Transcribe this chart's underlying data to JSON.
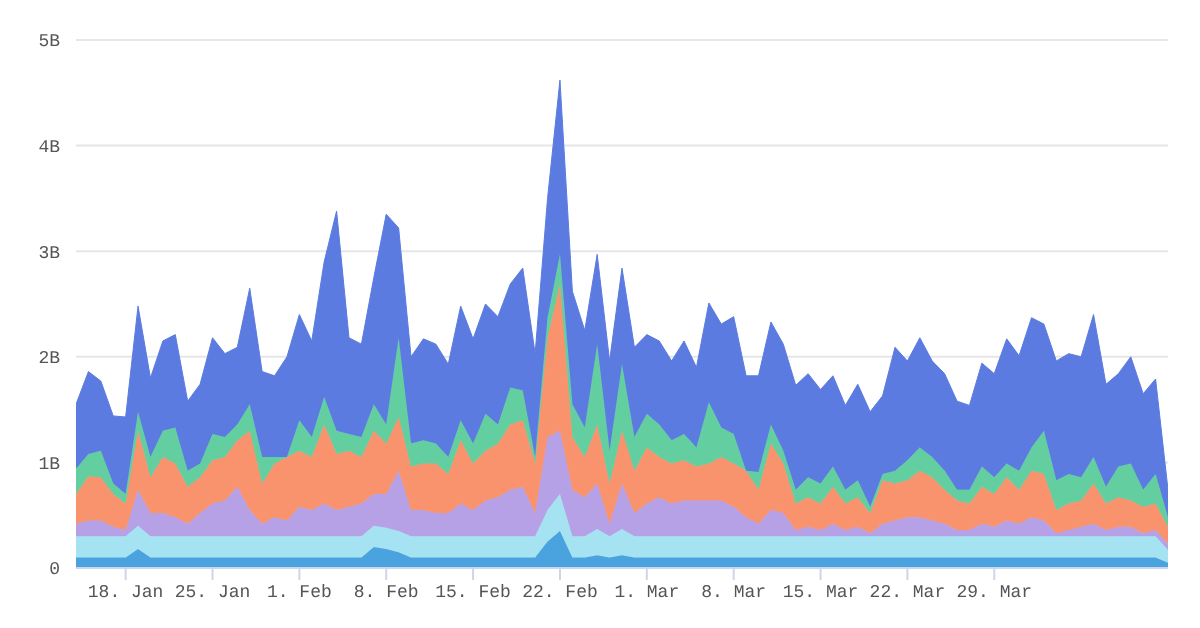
{
  "chart_data": {
    "type": "area",
    "stacked": true,
    "grid": "y",
    "marker": "none",
    "x": [
      "--01-14",
      "--01-15",
      "--01-16",
      "--01-17",
      "--01-18",
      "--01-19",
      "--01-20",
      "--01-21",
      "--01-22",
      "--01-23",
      "--01-24",
      "--01-25",
      "--01-26",
      "--01-27",
      "--01-28",
      "--01-29",
      "--01-30",
      "--01-31",
      "--02-01",
      "--02-02",
      "--02-03",
      "--02-04",
      "--02-05",
      "--02-06",
      "--02-07",
      "--02-08",
      "--02-09",
      "--02-10",
      "--02-11",
      "--02-12",
      "--02-13",
      "--02-14",
      "--02-15",
      "--02-16",
      "--02-17",
      "--02-18",
      "--02-19",
      "--02-20",
      "--02-21",
      "--02-22",
      "--02-23",
      "--02-24",
      "--02-25",
      "--02-26",
      "--02-27",
      "--02-28",
      "--03-01",
      "--03-02",
      "--03-03",
      "--03-04",
      "--03-05",
      "--03-06",
      "--03-07",
      "--03-08",
      "--03-09",
      "--03-10",
      "--03-11",
      "--03-12",
      "--03-13",
      "--03-14",
      "--03-15",
      "--03-16",
      "--03-17",
      "--03-18",
      "--03-19",
      "--03-20",
      "--03-21",
      "--03-22",
      "--03-23",
      "--03-24",
      "--03-25",
      "--03-26",
      "--03-27",
      "--03-28",
      "--03-29",
      "--03-30",
      "--03-31",
      "--04-01",
      "--04-02",
      "--04-03",
      "--04-04",
      "--04-05",
      "--04-06",
      "--04-07",
      "--04-08",
      "--04-09",
      "--04-10",
      "--04-11",
      "--04-12"
    ],
    "xlim": [
      "--01-14",
      "--04-12"
    ],
    "xticks": [
      {
        "value": "--01-18",
        "label": "18. Jan"
      },
      {
        "value": "--01-25",
        "label": "25. Jan"
      },
      {
        "value": "--02-01",
        "label": "1. Feb"
      },
      {
        "value": "--02-08",
        "label": "8. Feb"
      },
      {
        "value": "--02-15",
        "label": "15. Feb"
      },
      {
        "value": "--02-22",
        "label": "22. Feb"
      },
      {
        "value": "--03-01",
        "label": "1. Mar"
      },
      {
        "value": "--03-08",
        "label": "8. Mar"
      },
      {
        "value": "--03-15",
        "label": "15. Mar"
      },
      {
        "value": "--03-22",
        "label": "22. Mar"
      },
      {
        "value": "--03-29",
        "label": "29. Mar"
      }
    ],
    "ylim": [
      0,
      5
    ],
    "yticks": [
      {
        "value": 0,
        "label": "0"
      },
      {
        "value": 1,
        "label": "1B"
      },
      {
        "value": 2,
        "label": "2B"
      },
      {
        "value": 3,
        "label": "3B"
      },
      {
        "value": 4,
        "label": "4B"
      },
      {
        "value": 5,
        "label": "5B"
      }
    ],
    "series": [
      {
        "color": "#4aa3df",
        "values": [
          0.1,
          0.1,
          0.1,
          0.1,
          0.1,
          0.18,
          0.1,
          0.1,
          0.1,
          0.1,
          0.1,
          0.1,
          0.1,
          0.1,
          0.1,
          0.1,
          0.1,
          0.1,
          0.1,
          0.1,
          0.1,
          0.1,
          0.1,
          0.1,
          0.2,
          0.18,
          0.15,
          0.1,
          0.1,
          0.1,
          0.1,
          0.1,
          0.1,
          0.1,
          0.1,
          0.1,
          0.1,
          0.1,
          0.25,
          0.35,
          0.1,
          0.1,
          0.12,
          0.1,
          0.12,
          0.1,
          0.1,
          0.1,
          0.1,
          0.1,
          0.1,
          0.1,
          0.1,
          0.1,
          0.1,
          0.1,
          0.1,
          0.1,
          0.1,
          0.1,
          0.1,
          0.1,
          0.1,
          0.1,
          0.1,
          0.1,
          0.1,
          0.1,
          0.1,
          0.1,
          0.1,
          0.1,
          0.1,
          0.1,
          0.1,
          0.1,
          0.1,
          0.1,
          0.1,
          0.1,
          0.1,
          0.1,
          0.1,
          0.1,
          0.1,
          0.1,
          0.1,
          0.1,
          0.05
        ]
      },
      {
        "color": "#a5e3f2",
        "values": [
          0.2,
          0.2,
          0.2,
          0.2,
          0.2,
          0.22,
          0.2,
          0.2,
          0.2,
          0.2,
          0.2,
          0.2,
          0.2,
          0.2,
          0.2,
          0.2,
          0.2,
          0.2,
          0.2,
          0.2,
          0.2,
          0.2,
          0.2,
          0.2,
          0.2,
          0.2,
          0.2,
          0.2,
          0.2,
          0.2,
          0.2,
          0.2,
          0.2,
          0.2,
          0.2,
          0.2,
          0.2,
          0.2,
          0.3,
          0.35,
          0.2,
          0.2,
          0.25,
          0.2,
          0.25,
          0.2,
          0.2,
          0.2,
          0.2,
          0.2,
          0.2,
          0.2,
          0.2,
          0.2,
          0.2,
          0.2,
          0.2,
          0.2,
          0.2,
          0.2,
          0.2,
          0.2,
          0.2,
          0.2,
          0.2,
          0.2,
          0.2,
          0.2,
          0.2,
          0.2,
          0.2,
          0.2,
          0.2,
          0.2,
          0.2,
          0.2,
          0.2,
          0.2,
          0.2,
          0.2,
          0.2,
          0.2,
          0.2,
          0.2,
          0.2,
          0.2,
          0.2,
          0.2,
          0.12
        ]
      },
      {
        "color": "#b7a1e6",
        "values": [
          0.12,
          0.15,
          0.15,
          0.09,
          0.06,
          0.34,
          0.22,
          0.22,
          0.18,
          0.12,
          0.22,
          0.31,
          0.34,
          0.47,
          0.25,
          0.12,
          0.18,
          0.15,
          0.28,
          0.25,
          0.31,
          0.25,
          0.28,
          0.31,
          0.3,
          0.32,
          0.57,
          0.25,
          0.25,
          0.22,
          0.22,
          0.31,
          0.25,
          0.34,
          0.37,
          0.44,
          0.47,
          0.22,
          0.69,
          0.6,
          0.44,
          0.37,
          0.43,
          0.12,
          0.43,
          0.22,
          0.31,
          0.37,
          0.31,
          0.34,
          0.34,
          0.34,
          0.34,
          0.28,
          0.18,
          0.12,
          0.25,
          0.22,
          0.06,
          0.09,
          0.06,
          0.12,
          0.06,
          0.09,
          0.03,
          0.12,
          0.15,
          0.18,
          0.18,
          0.15,
          0.12,
          0.06,
          0.06,
          0.12,
          0.09,
          0.15,
          0.12,
          0.18,
          0.15,
          0.03,
          0.06,
          0.09,
          0.12,
          0.06,
          0.09,
          0.09,
          0.03,
          0.06,
          0.06
        ]
      },
      {
        "color": "#f8936e",
        "values": [
          0.28,
          0.42,
          0.41,
          0.31,
          0.25,
          0.56,
          0.34,
          0.53,
          0.51,
          0.35,
          0.34,
          0.41,
          0.41,
          0.44,
          0.75,
          0.38,
          0.51,
          0.6,
          0.53,
          0.5,
          0.75,
          0.53,
          0.53,
          0.44,
          0.6,
          0.48,
          0.51,
          0.41,
          0.44,
          0.47,
          0.37,
          0.6,
          0.44,
          0.47,
          0.51,
          0.62,
          0.63,
          0.47,
          0.94,
          1.39,
          0.5,
          0.38,
          0.56,
          0.38,
          0.5,
          0.4,
          0.53,
          0.38,
          0.38,
          0.38,
          0.32,
          0.35,
          0.41,
          0.41,
          0.44,
          0.32,
          0.63,
          0.47,
          0.25,
          0.28,
          0.25,
          0.35,
          0.25,
          0.28,
          0.19,
          0.41,
          0.35,
          0.35,
          0.44,
          0.41,
          0.32,
          0.28,
          0.25,
          0.35,
          0.31,
          0.41,
          0.32,
          0.44,
          0.44,
          0.22,
          0.25,
          0.25,
          0.38,
          0.25,
          0.28,
          0.25,
          0.25,
          0.25,
          0.16
        ]
      },
      {
        "color": "#63cfa0",
        "values": [
          0.24,
          0.21,
          0.25,
          0.1,
          0.09,
          0.18,
          0.19,
          0.25,
          0.34,
          0.15,
          0.13,
          0.25,
          0.19,
          0.15,
          0.25,
          0.25,
          0.06,
          0,
          0.29,
          0.19,
          0.26,
          0.22,
          0.16,
          0.19,
          0.25,
          0.18,
          0.75,
          0.22,
          0.22,
          0.19,
          0.16,
          0.19,
          0.19,
          0.35,
          0.18,
          0.35,
          0.28,
          0.06,
          0.19,
          0.28,
          0.31,
          0.28,
          0.76,
          0.31,
          0.63,
          0.32,
          0.32,
          0.31,
          0.22,
          0.25,
          0.18,
          0.58,
          0.28,
          0.28,
          0,
          0.17,
          0.18,
          0.12,
          0.13,
          0.19,
          0.19,
          0.19,
          0.13,
          0.16,
          0.06,
          0.06,
          0.12,
          0.19,
          0.22,
          0.19,
          0.18,
          0.1,
          0.13,
          0.19,
          0.16,
          0.13,
          0.18,
          0.22,
          0.41,
          0.28,
          0.28,
          0.22,
          0.25,
          0.16,
          0.29,
          0.35,
          0.16,
          0.28,
          0.09
        ]
      },
      {
        "color": "#5b7be0",
        "values": [
          0.61,
          0.78,
          0.66,
          0.64,
          0.73,
          1.0,
          0.75,
          0.85,
          0.88,
          0.66,
          0.75,
          0.91,
          0.79,
          0.73,
          1.1,
          0.81,
          0.77,
          0.95,
          1.0,
          0.91,
          1.28,
          2.08,
          0.91,
          0.88,
          1.2,
          1.99,
          1.04,
          0.82,
          0.96,
          0.94,
          0.88,
          1.08,
          0.99,
          1.04,
          1.02,
          0.98,
          1.16,
          0.98,
          1.13,
          1.65,
          1.07,
          0.92,
          0.85,
          0.85,
          0.91,
          0.85,
          0.75,
          0.79,
          0.75,
          0.88,
          0.76,
          0.94,
          0.98,
          1.11,
          0.9,
          0.91,
          0.97,
          1.01,
          0.99,
          0.98,
          0.89,
          0.86,
          0.8,
          0.91,
          0.9,
          0.74,
          1.17,
          0.94,
          1.04,
          0.91,
          0.92,
          0.84,
          0.8,
          0.98,
          0.98,
          1.18,
          1.09,
          1.23,
          1.01,
          1.13,
          1.14,
          1.14,
          1.35,
          0.97,
          0.88,
          1.01,
          0.91,
          0.9,
          0.26
        ]
      }
    ]
  }
}
